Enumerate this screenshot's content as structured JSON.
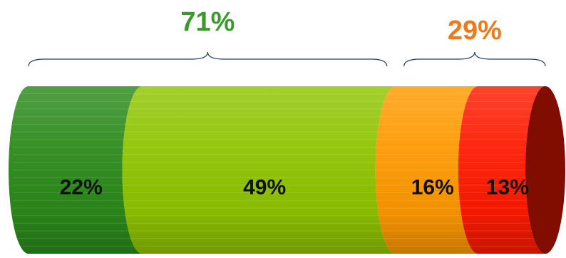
{
  "chart_data": {
    "type": "bar",
    "orientation": "horizontal-stacked-cylinder",
    "title": "",
    "xlabel": "",
    "ylabel": "",
    "legend": "none",
    "grid": false,
    "segments": [
      {
        "label": "22%",
        "value": 22,
        "color": "#2b8a1a"
      },
      {
        "label": "49%",
        "value": 49,
        "color": "#8fc400"
      },
      {
        "label": "16%",
        "value": 16,
        "color": "#ff9900"
      },
      {
        "label": "13%",
        "value": 13,
        "color": "#ff1a00"
      }
    ],
    "groups": [
      {
        "label": "71%",
        "members": [
          0,
          1
        ],
        "color": "#3a9a2a"
      },
      {
        "label": "29%",
        "members": [
          2,
          3
        ],
        "color": "#f07a1a"
      }
    ]
  }
}
